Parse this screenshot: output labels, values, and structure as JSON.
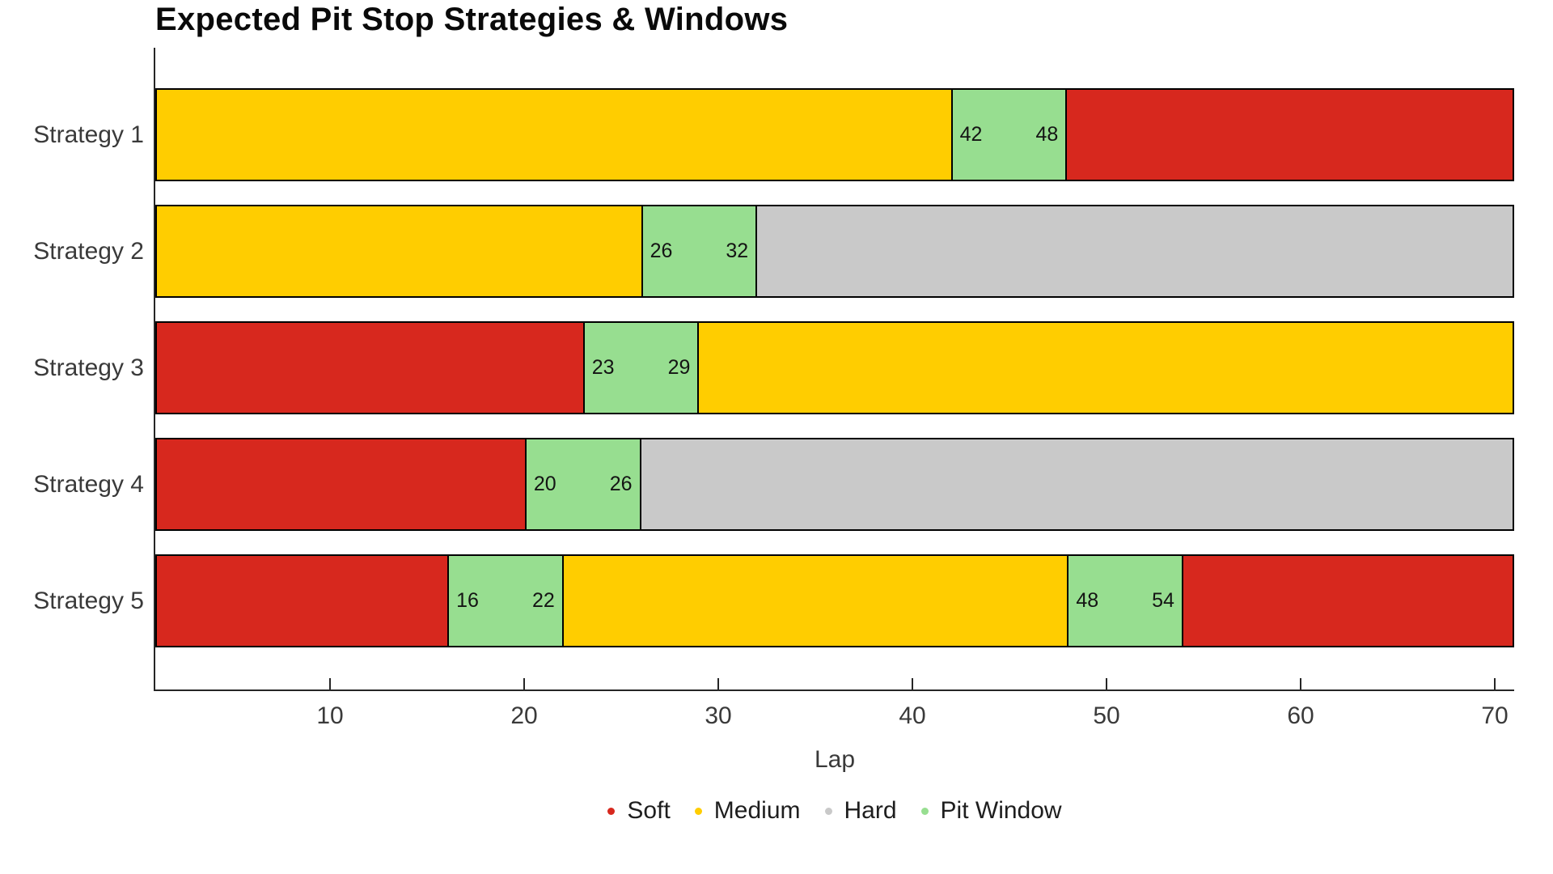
{
  "palette": {
    "background": "#FFFFFF",
    "title_text": "#0A0A0A",
    "axis_text": "#3A3A3A",
    "legend_text": "#1E1E1E",
    "window_label_text": "#141414",
    "bar_border": "#000000",
    "spine": "#262626"
  },
  "chart_data": {
    "type": "bar",
    "subtype": "horizontal-stacked-timeline",
    "title": "Expected Pit Stop Strategies & Windows",
    "xlabel": "Lap",
    "xlim": [
      1,
      71
    ],
    "xticks": [
      10,
      20,
      30,
      40,
      50,
      60,
      70
    ],
    "grid": false,
    "legend_position": "bottom-center",
    "categories": [
      "Strategy 1",
      "Strategy 2",
      "Strategy 3",
      "Strategy 4",
      "Strategy 5"
    ],
    "colors": {
      "Soft": "#D7281E",
      "Medium": "#FFCD00",
      "Hard": "#C9C9C9",
      "Pit Window": "#97DE90"
    },
    "legend": [
      {
        "label": "Soft",
        "color": "#D7281E"
      },
      {
        "label": "Medium",
        "color": "#FFCD00"
      },
      {
        "label": "Hard",
        "color": "#C9C9C9"
      },
      {
        "label": "Pit Window",
        "color": "#97DE90"
      }
    ],
    "strategies": [
      {
        "name": "Strategy 1",
        "stints": [
          {
            "compound": "Medium",
            "start_lap": 1,
            "end_lap": 42
          },
          {
            "compound": "Soft",
            "start_lap": 48,
            "end_lap": 71
          }
        ],
        "pit_windows": [
          {
            "open": 42,
            "close": 48
          }
        ]
      },
      {
        "name": "Strategy 2",
        "stints": [
          {
            "compound": "Medium",
            "start_lap": 1,
            "end_lap": 26
          },
          {
            "compound": "Hard",
            "start_lap": 32,
            "end_lap": 71
          }
        ],
        "pit_windows": [
          {
            "open": 26,
            "close": 32
          }
        ]
      },
      {
        "name": "Strategy 3",
        "stints": [
          {
            "compound": "Soft",
            "start_lap": 1,
            "end_lap": 23
          },
          {
            "compound": "Medium",
            "start_lap": 29,
            "end_lap": 71
          }
        ],
        "pit_windows": [
          {
            "open": 23,
            "close": 29
          }
        ]
      },
      {
        "name": "Strategy 4",
        "stints": [
          {
            "compound": "Soft",
            "start_lap": 1,
            "end_lap": 20
          },
          {
            "compound": "Hard",
            "start_lap": 26,
            "end_lap": 71
          }
        ],
        "pit_windows": [
          {
            "open": 20,
            "close": 26
          }
        ]
      },
      {
        "name": "Strategy 5",
        "stints": [
          {
            "compound": "Soft",
            "start_lap": 1,
            "end_lap": 16
          },
          {
            "compound": "Medium",
            "start_lap": 22,
            "end_lap": 48
          },
          {
            "compound": "Soft",
            "start_lap": 54,
            "end_lap": 71
          }
        ],
        "pit_windows": [
          {
            "open": 16,
            "close": 22
          },
          {
            "open": 48,
            "close": 54
          }
        ]
      }
    ]
  }
}
